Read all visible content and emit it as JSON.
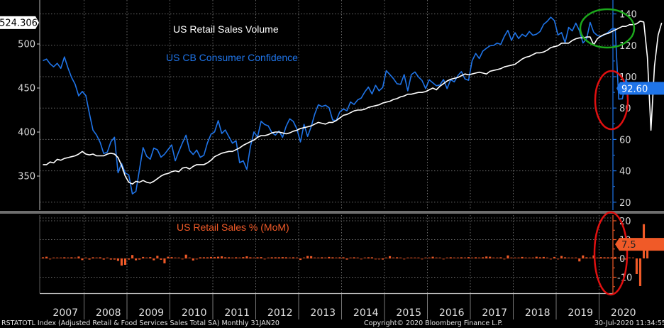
{
  "chart_data": [
    {
      "type": "line",
      "title": "US Retail Sales Volume / US CB Consumer Confidence",
      "annotations": [
        {
          "text": "US Retail Sales Volume",
          "color": "#ffffff"
        },
        {
          "text": "US CB Consumer Confidence",
          "color": "#1f74e8"
        }
      ],
      "x_range": [
        "2007-01",
        "2020-06"
      ],
      "x_tick_labels": [
        "2007",
        "2008",
        "2009",
        "2010",
        "2011",
        "2012",
        "2013",
        "2014",
        "2015",
        "2016",
        "2017",
        "2018",
        "2019",
        "2020"
      ],
      "left_axis": {
        "ticks": [
          350,
          400,
          450,
          500
        ],
        "ylim": [
          315,
          545
        ],
        "last_value_label": "524.306"
      },
      "right_axis": {
        "ticks": [
          20,
          40,
          60,
          80,
          100,
          120,
          140
        ],
        "ylim": [
          17,
          145
        ],
        "last_value_label": "92.60"
      },
      "grid": true,
      "series": [
        {
          "name": "US Retail Sales Volume",
          "axis": "left",
          "color": "#ffffff",
          "frequency": "monthly",
          "start": "2007-01",
          "values": [
            363,
            363,
            366,
            365,
            369,
            368,
            370,
            371,
            372,
            373,
            375,
            378,
            375,
            374,
            375,
            373,
            373,
            373,
            375,
            376,
            375,
            371,
            362,
            350,
            343,
            341,
            344,
            343,
            345,
            343,
            342,
            344,
            347,
            350,
            352,
            353,
            355,
            356,
            355,
            359,
            360,
            358,
            361,
            363,
            363,
            363,
            365,
            368,
            372,
            374,
            376,
            377,
            378,
            378,
            380,
            382,
            385,
            387,
            389,
            391,
            394,
            396,
            396,
            397,
            399,
            400,
            400,
            399,
            398,
            399,
            401,
            402,
            404,
            405,
            406,
            407,
            409,
            411,
            410,
            409,
            411,
            411,
            413,
            416,
            419,
            420,
            422,
            424,
            425,
            425,
            426,
            428,
            429,
            430,
            431,
            433,
            434,
            435,
            437,
            438,
            440,
            441,
            443,
            443,
            444,
            445,
            445,
            446,
            448,
            450,
            448,
            452,
            455,
            458,
            460,
            461,
            462,
            464,
            466,
            465,
            466,
            467,
            468,
            467,
            466,
            469,
            470,
            471,
            472,
            474,
            475,
            476,
            477,
            480,
            483,
            485,
            486,
            488,
            490,
            490,
            491,
            493,
            496,
            497,
            498,
            501,
            501,
            501,
            504,
            506,
            507,
            507,
            508,
            508,
            499,
            506,
            509,
            511,
            512,
            514,
            516,
            518,
            520,
            520,
            522,
            522,
            523,
            526,
            525,
            485,
            402,
            475,
            510,
            524
          ]
        },
        {
          "name": "US CB Consumer Confidence",
          "axis": "right",
          "color": "#1f74e8",
          "frequency": "monthly",
          "start": "2007-01",
          "values": [
            110.2,
            111.2,
            108.2,
            106.3,
            108.5,
            105.3,
            112.6,
            105.6,
            99.5,
            95.2,
            87.8,
            90.6,
            87.9,
            76.4,
            65.9,
            62.8,
            58.1,
            51.0,
            51.9,
            58.5,
            61.4,
            38.8,
            44.7,
            38.6,
            37.4,
            25.3,
            26.9,
            40.8,
            54.8,
            49.3,
            47.4,
            54.5,
            53.4,
            48.7,
            50.6,
            53.6,
            56.5,
            46.4,
            52.3,
            57.7,
            62.7,
            52.9,
            50.4,
            53.2,
            48.6,
            49.9,
            57.8,
            63.4,
            64.8,
            72.0,
            63.8,
            66.0,
            61.7,
            57.6,
            59.2,
            45.2,
            46.4,
            40.9,
            55.2,
            64.8,
            61.5,
            71.6,
            69.5,
            68.7,
            64.4,
            62.7,
            65.4,
            61.3,
            68.4,
            73.1,
            71.5,
            66.7,
            58.4,
            69.6,
            61.9,
            68.1,
            76.2,
            82.1,
            81.0,
            81.8,
            80.2,
            72.4,
            72.0,
            77.5,
            79.4,
            78.3,
            83.9,
            82.3,
            85.2,
            86.4,
            90.3,
            93.4,
            89.0,
            94.5,
            91.0,
            93.1,
            103.8,
            101.3,
            98.8,
            95.5,
            95.1,
            101.3,
            91.0,
            101.3,
            103.0,
            99.8,
            97.6,
            92.4,
            98.0,
            96.1,
            94.2,
            94.7,
            98.2,
            92.4,
            98.1,
            96.7,
            100.7,
            103.2,
            98.6,
            97.7,
            110.1,
            114.8,
            111.6,
            116.3,
            118.1,
            119.7,
            119.9,
            121.4,
            120.6,
            125.7,
            129.5,
            123.1,
            128.0,
            124.3,
            127.0,
            125.6,
            128.8,
            126.4,
            127.1,
            128.8,
            133.4,
            135.3,
            137.9,
            135.7,
            126.6,
            128.1,
            121.7,
            131.4,
            129.2,
            134.1,
            129.3,
            121.5,
            124.1,
            134.6,
            128.3,
            126.3,
            125.5,
            126.8,
            128.2,
            130.4,
            130.7,
            85.7,
            85.9,
            98.3,
            92.6
          ]
        }
      ]
    },
    {
      "type": "bar",
      "title": "US Retail Sales % (MoM)",
      "color": "#f05a28",
      "frequency": "monthly",
      "start": "2007-01",
      "ylim": [
        -16,
        23
      ],
      "y_ticks": [
        -10,
        0,
        10,
        20
      ],
      "last_value_label": "7.5",
      "grid": true,
      "values": [
        0.4,
        0.9,
        -0.3,
        0.1,
        0.0,
        0.1,
        0.4,
        0.3,
        0.6,
        0.1,
        1.0,
        -0.9,
        0.1,
        -0.4,
        0.5,
        0.0,
        0.6,
        -0.6,
        0.2,
        -0.4,
        -0.5,
        -1.3,
        -3.8,
        -3.4,
        -0.4,
        1.8,
        -1.0,
        -0.6,
        0.8,
        0.2,
        0.7,
        -1.0,
        1.4,
        -0.7,
        -2.6,
        0.9,
        0.7,
        0.3,
        0.2,
        -0.1,
        2.0,
        0.3,
        -1.1,
        -0.2,
        0.4,
        0.5,
        0.4,
        0.8,
        0.7,
        0.9,
        1.1,
        0.6,
        0.4,
        0.2,
        0.6,
        0.3,
        0.7,
        1.1,
        0.5,
        0.1,
        0.6,
        0.7,
        -0.2,
        0.2,
        0.5,
        0.4,
        0.6,
        0.7,
        0.4,
        0.2,
        0.4,
        0.1,
        -0.8,
        0.2,
        1.3,
        1.2,
        0.0,
        0.1,
        0.5,
        0.3,
        0.8,
        0.4,
        0.2,
        0.4,
        0.6,
        -0.4,
        0.3,
        0.5,
        0.3,
        -0.2,
        0.3,
        0.4,
        0.4,
        -0.3,
        -0.3,
        -0.6,
        0.0,
        1.2,
        0.2,
        0.5,
        0.3,
        -0.1,
        0.2,
        0.2,
        0.1,
        0.2,
        -0.2,
        0.2,
        0.2,
        0.9,
        0.1,
        0.1,
        -0.3,
        0.0,
        0.6,
        0.1,
        0.2,
        0.5,
        0.1,
        0.7,
        0.0,
        0.6,
        0.0,
        0.4,
        1.0,
        0.9,
        0.1,
        0.2,
        0.5,
        -0.1,
        1.6,
        0.3,
        0.2,
        0.0,
        0.8,
        0.3,
        0.1,
        0.1,
        0.9,
        0.5,
        0.8,
        0.2,
        -0.3,
        0.8,
        -0.1,
        1.3,
        0.5,
        0.2,
        0.3,
        0.1,
        -1.6,
        1.6,
        0.5,
        0.3,
        1.6,
        0.3,
        0.7,
        0.4,
        0.4,
        0.4,
        0.8,
        0.3,
        -0.2,
        -0.4,
        0.1,
        0.1,
        -8.3,
        -14.7,
        18.2,
        7.5
      ]
    }
  ],
  "footer": {
    "left": "RSTATOTL Index (Adjusted Retail & Food Services Sales Total SA)  Monthly 31JAN20",
    "center": "Copyright© 2020 Bloomberg Finance L.P.",
    "right": "30-Jul-2020 11:34:55"
  },
  "highlights": [
    {
      "shape": "ellipse",
      "color": "#1ca81c",
      "note": "pre-COVID peak"
    },
    {
      "shape": "ellipse",
      "color": "#e01010",
      "note": "COVID drop (top panel)"
    },
    {
      "shape": "ellipse",
      "color": "#e01010",
      "note": "COVID drop (bottom panel)"
    }
  ]
}
